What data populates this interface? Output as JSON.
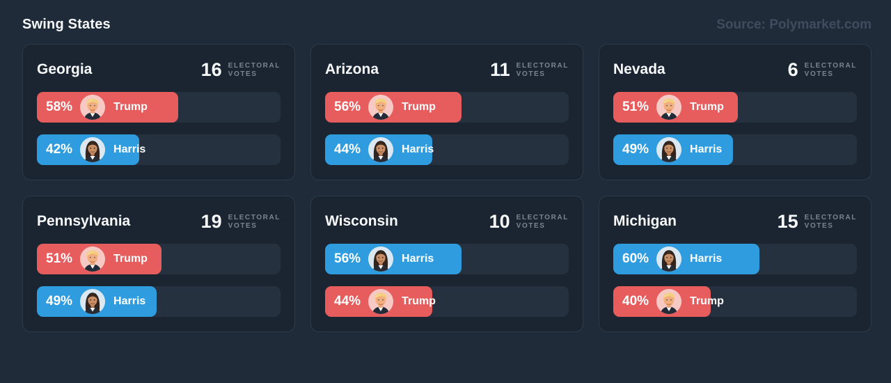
{
  "header": {
    "title": "Swing States",
    "source": "Source: Polymarket.com"
  },
  "labels": {
    "electoral_line1": "ELECTORAL",
    "electoral_line2": "VOTES"
  },
  "colors": {
    "page_bg": "#202b39",
    "card_bg": "#1a2531",
    "card_border": "#2d3a4a",
    "track_bg": "#26313f",
    "trump": "#e75c5c",
    "harris": "#2e9cdf",
    "text_primary": "#f7f9fb",
    "ev_label_text": "#7a8591",
    "source_text": "#3e4c5e"
  },
  "chart_data": {
    "type": "bar",
    "orientation": "horizontal",
    "title": "Swing States",
    "source": "Source: Polymarket.com",
    "value_unit": "percent",
    "xlim": [
      0,
      100
    ],
    "grid": false,
    "states": [
      {
        "state": "Georgia",
        "electoral_votes": "16",
        "candidates": [
          {
            "name": "Trump",
            "value": 58,
            "label": "58%",
            "party": "trump"
          },
          {
            "name": "Harris",
            "value": 42,
            "label": "42%",
            "party": "harris"
          }
        ]
      },
      {
        "state": "Arizona",
        "electoral_votes": "11",
        "candidates": [
          {
            "name": "Trump",
            "value": 56,
            "label": "56%",
            "party": "trump"
          },
          {
            "name": "Harris",
            "value": 44,
            "label": "44%",
            "party": "harris"
          }
        ]
      },
      {
        "state": "Nevada",
        "electoral_votes": "6",
        "candidates": [
          {
            "name": "Trump",
            "value": 51,
            "label": "51%",
            "party": "trump"
          },
          {
            "name": "Harris",
            "value": 49,
            "label": "49%",
            "party": "harris"
          }
        ]
      },
      {
        "state": "Pennsylvania",
        "electoral_votes": "19",
        "candidates": [
          {
            "name": "Trump",
            "value": 51,
            "label": "51%",
            "party": "trump"
          },
          {
            "name": "Harris",
            "value": 49,
            "label": "49%",
            "party": "harris"
          }
        ]
      },
      {
        "state": "Wisconsin",
        "electoral_votes": "10",
        "candidates": [
          {
            "name": "Harris",
            "value": 56,
            "label": "56%",
            "party": "harris"
          },
          {
            "name": "Trump",
            "value": 44,
            "label": "44%",
            "party": "trump"
          }
        ]
      },
      {
        "state": "Michigan",
        "electoral_votes": "15",
        "candidates": [
          {
            "name": "Harris",
            "value": 60,
            "label": "60%",
            "party": "harris"
          },
          {
            "name": "Trump",
            "value": 40,
            "label": "40%",
            "party": "trump"
          }
        ]
      }
    ]
  }
}
